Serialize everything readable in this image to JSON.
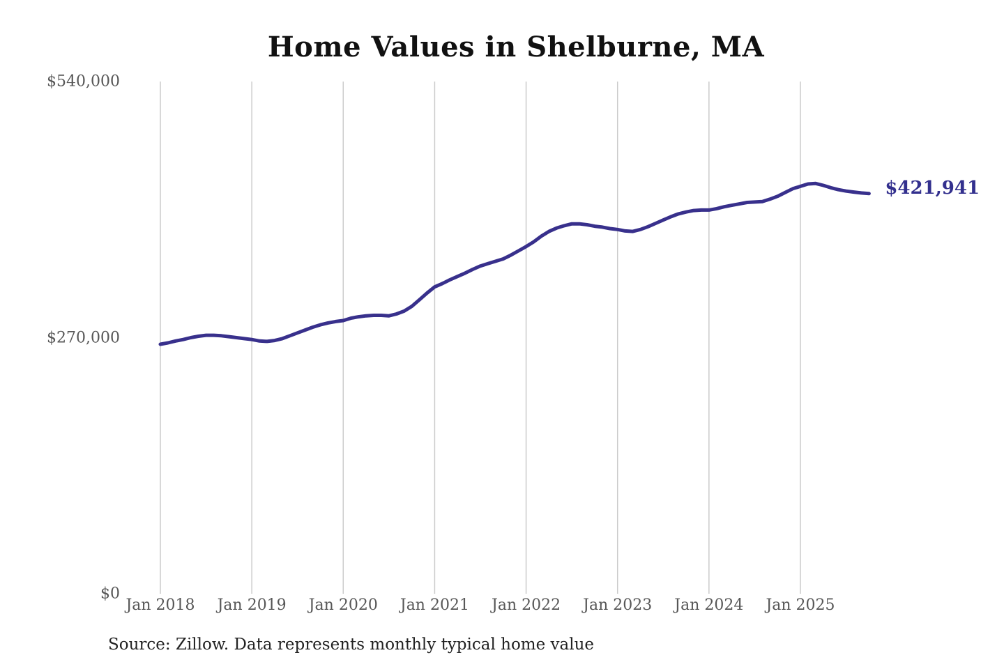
{
  "title": "Home Values in Shelburne, MA",
  "source_note": "Source: Zillow. Data represents monthly typical home value",
  "end_label": "$421,941",
  "colors": {
    "line": "#38308C",
    "end_label_text": "#33308E",
    "grid": "#CBCBCB",
    "axis_text": "#575757",
    "title_text": "#111111",
    "source_text": "#222222",
    "background": "#FFFFFF"
  },
  "chart_data": {
    "type": "line",
    "title": "Home Values in Shelburne, MA",
    "xlabel": "",
    "ylabel": "",
    "ylim": [
      0,
      540000
    ],
    "grid": "vertical-only",
    "legend": "none",
    "x_start_month": "Jan 2018",
    "x_end_month": "Oct 2025",
    "x_tick_labels": [
      "Jan 2018",
      "Jan 2019",
      "Jan 2020",
      "Jan 2021",
      "Jan 2022",
      "Jan 2023",
      "Jan 2024",
      "Jan 2025"
    ],
    "y_ticks": [
      {
        "label": "$0",
        "value": 0
      },
      {
        "label": "$270,000",
        "value": 270000
      },
      {
        "label": "$540,000",
        "value": 540000
      }
    ],
    "final_value": 421941,
    "series": [
      {
        "name": "Monthly typical home value",
        "values": [
          263000,
          264500,
          266500,
          268000,
          270000,
          271500,
          272500,
          272500,
          272000,
          271000,
          270000,
          269000,
          268000,
          266500,
          266000,
          267000,
          269000,
          272000,
          275000,
          278000,
          281000,
          283500,
          285500,
          287000,
          288000,
          290500,
          292000,
          293000,
          293500,
          293500,
          293000,
          295000,
          298000,
          303000,
          310000,
          317000,
          323500,
          327000,
          331000,
          334500,
          338000,
          342000,
          345500,
          348000,
          350500,
          353000,
          357000,
          361500,
          366000,
          371000,
          377000,
          382000,
          385500,
          388000,
          390000,
          390000,
          389000,
          387500,
          386500,
          385000,
          384000,
          382500,
          382000,
          384000,
          387000,
          390500,
          394000,
          397500,
          400500,
          402500,
          404000,
          404500,
          404500,
          406000,
          408000,
          409500,
          411000,
          412500,
          413000,
          413500,
          416000,
          419000,
          423000,
          427000,
          429500,
          432000,
          432500,
          430500,
          428000,
          426000,
          424500,
          423500,
          422500,
          421941
        ]
      }
    ]
  }
}
